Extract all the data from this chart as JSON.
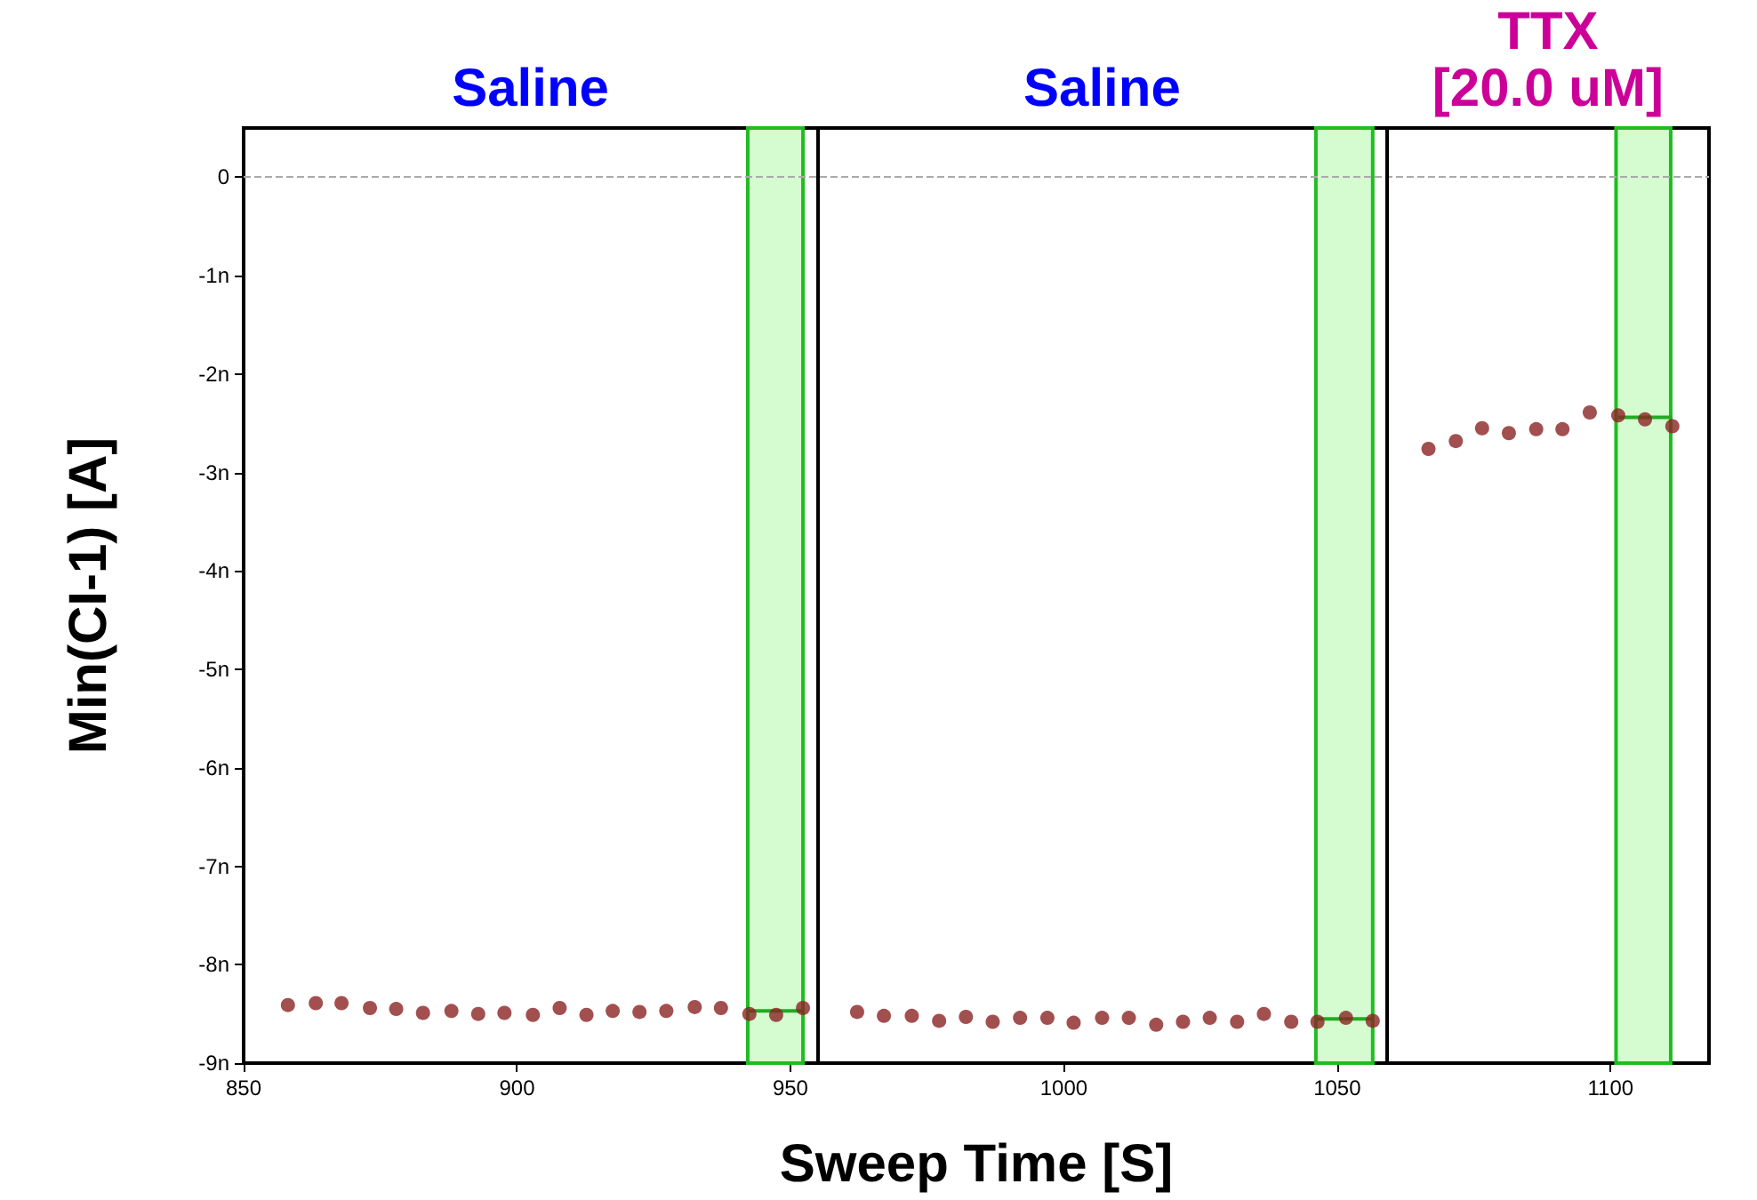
{
  "chart_data": {
    "type": "scatter",
    "xlabel": "Sweep Time [S]",
    "ylabel": "Min(CI-1) [A]",
    "annotations": [
      "Saline",
      "Saline",
      "TTX\n[20.0 uM]"
    ],
    "xlim": [
      850,
      1118
    ],
    "xticks": [
      850,
      900,
      950,
      1000,
      1050,
      1100
    ],
    "ylim": [
      -9,
      0.5
    ],
    "yticks": [
      0,
      {
        "value": -1,
        "label": "-1n"
      },
      {
        "value": -2,
        "label": "-2n"
      },
      {
        "value": -3,
        "label": "-3n"
      },
      {
        "value": -4,
        "label": "-4n"
      },
      {
        "value": -5,
        "label": "-5n"
      },
      {
        "value": -6,
        "label": "-6n"
      },
      {
        "value": -7,
        "label": "-7n"
      },
      {
        "value": -8,
        "label": "-8n"
      },
      {
        "value": -9,
        "label": "-9n"
      }
    ],
    "grid": false,
    "series": [
      {
        "color": "#8b2323",
        "marker": "circle",
        "x": [
          858.1,
          863.2,
          867.9,
          873.1,
          877.9,
          882.8,
          888.0,
          892.9,
          897.7,
          902.9,
          907.8,
          912.7,
          917.5,
          922.4,
          927.3,
          932.5,
          937.3,
          942.5,
          947.4,
          952.3,
          962.2,
          967.1,
          972.2,
          977.2,
          982.1,
          987.0,
          992.0,
          997.0,
          1001.8,
          1007.0,
          1011.9,
          1016.9,
          1021.8,
          1026.7,
          1031.7,
          1036.6,
          1041.6,
          1046.4,
          1051.6,
          1056.5,
          1066.7,
          1071.7,
          1076.5,
          1081.4,
          1086.4,
          1091.2,
          1096.2,
          1101.4,
          1106.3,
          1111.3
        ],
        "values": [
          -8.41,
          -8.39,
          -8.39,
          -8.44,
          -8.45,
          -8.49,
          -8.47,
          -8.5,
          -8.49,
          -8.51,
          -8.44,
          -8.51,
          -8.47,
          -8.48,
          -8.47,
          -8.43,
          -8.44,
          -8.5,
          -8.51,
          -8.44,
          -8.48,
          -8.52,
          -8.52,
          -8.57,
          -8.53,
          -8.58,
          -8.54,
          -8.54,
          -8.59,
          -8.54,
          -8.54,
          -8.61,
          -8.58,
          -8.54,
          -8.58,
          -8.5,
          -8.58,
          -8.58,
          -8.54,
          -8.57,
          -2.76,
          -2.68,
          -2.55,
          -2.6,
          -2.56,
          -2.56,
          -2.39,
          -2.42,
          -2.46,
          -2.53
        ]
      },
      {
        "type": "line",
        "marker": "none",
        "color": "#22aa22",
        "x": [
          942.5,
          952.3
        ],
        "values": [
          -8.47,
          -8.47
        ]
      },
      {
        "type": "line",
        "marker": "none",
        "color": "#22aa22",
        "x": [
          1046.4,
          1056.5
        ],
        "values": [
          -8.55,
          -8.55
        ]
      },
      {
        "type": "line",
        "marker": "none",
        "color": "#22aa22",
        "x": [
          1101.4,
          1111.3
        ],
        "values": [
          -2.44,
          -2.44
        ]
      }
    ],
    "bands": [
      {
        "axis": "x",
        "from": 942.2,
        "to": 952.3,
        "color": "#d4fcd0"
      },
      {
        "axis": "x",
        "from": 1046.1,
        "to": 1056.5,
        "color": "#d4fcd0"
      },
      {
        "axis": "x",
        "from": 1101.0,
        "to": 1111.0,
        "color": "#d4fcd0"
      }
    ],
    "ref_lines": [
      {
        "axis": "y",
        "value": 0,
        "color": "#aaaaaa",
        "line_style": "dashed"
      },
      {
        "axis": "x",
        "value": 954.9,
        "color": "#000000",
        "line_style": "solid"
      },
      {
        "axis": "x",
        "value": 1059.1,
        "color": "#000000",
        "line_style": "solid"
      }
    ]
  }
}
